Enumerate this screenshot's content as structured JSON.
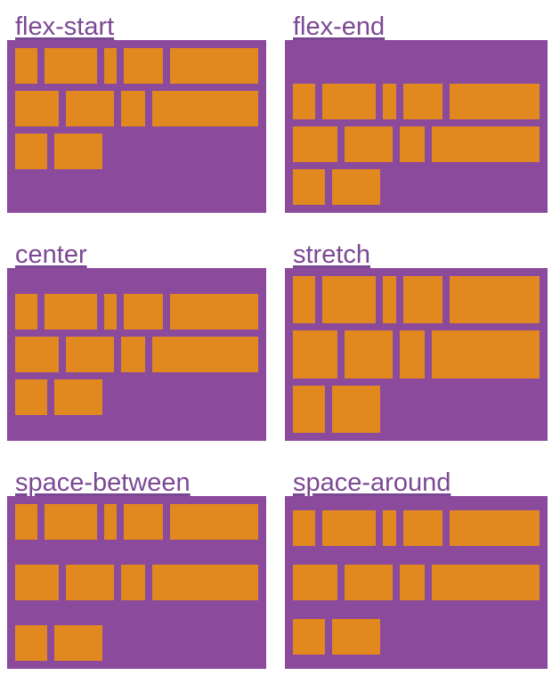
{
  "colors": {
    "background": "#ffffff",
    "container": "#8c4a9d",
    "item": "#e1891e",
    "label": "#7b4894"
  },
  "panels": [
    {
      "label": "flex-start",
      "align_content": "flex-start"
    },
    {
      "label": "flex-end",
      "align_content": "flex-end"
    },
    {
      "label": "center",
      "align_content": "center"
    },
    {
      "label": "stretch",
      "align_content": "stretch"
    },
    {
      "label": "space-between",
      "align_content": "space-between"
    },
    {
      "label": "space-around",
      "align_content": "space-around"
    }
  ],
  "flex_lines": [
    {
      "boxes": [
        26,
        62,
        15,
        46,
        104
      ]
    },
    {
      "boxes": [
        52,
        57,
        29,
        126
      ]
    },
    {
      "boxes": [
        36,
        54
      ]
    }
  ]
}
